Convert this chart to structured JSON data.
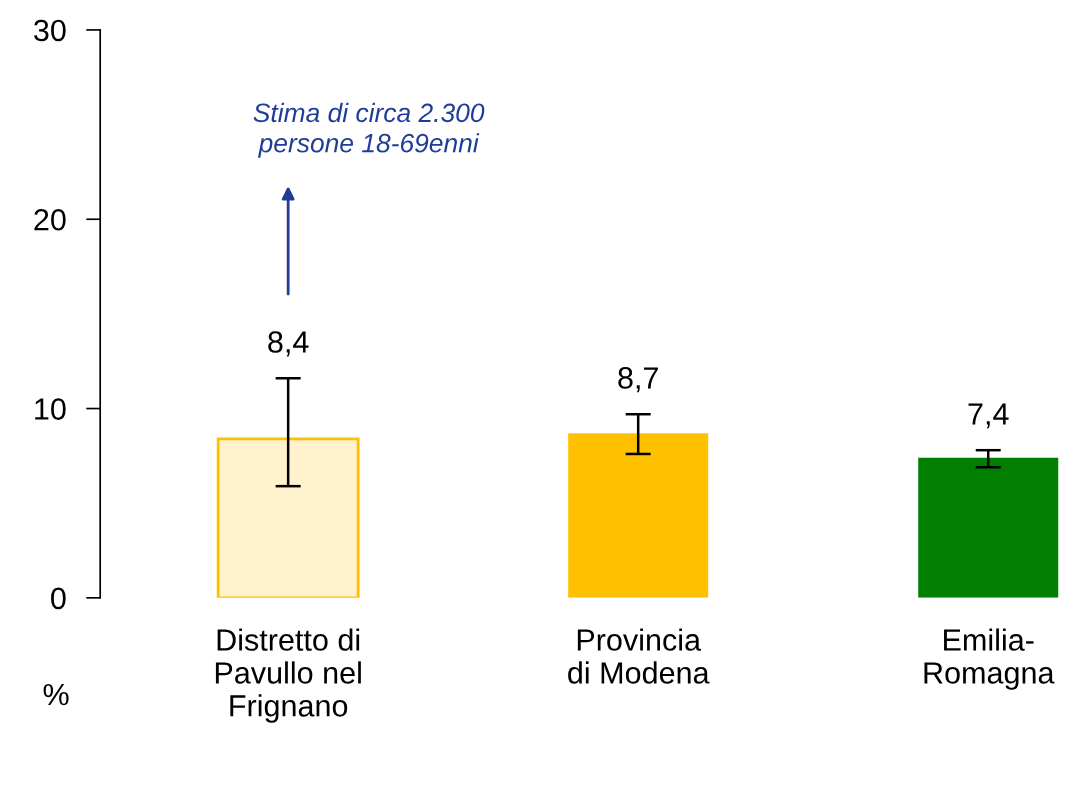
{
  "chart_data": {
    "type": "bar",
    "ylabel": "%",
    "categories": [
      "Distretto di\nPavullo nel\nFrignano",
      "Provincia\ndi Modena",
      "Emilia-\nRomagna"
    ],
    "values": [
      8.4,
      8.7,
      7.4
    ],
    "colors": [
      "#fff2cc",
      "#ffc000",
      "#007f00"
    ],
    "value_labels": [
      "8,4",
      "8,7",
      "7,4"
    ],
    "errors": [
      [
        5.9,
        11.6
      ],
      [
        7.6,
        9.7
      ],
      [
        6.9,
        7.8
      ]
    ],
    "ylim": [
      0,
      30
    ],
    "yticks": [
      0,
      10,
      20,
      30
    ],
    "grid": false,
    "legend": false,
    "annotations": [
      "Stima di circa 2.300\npersone 18-69enni"
    ]
  }
}
